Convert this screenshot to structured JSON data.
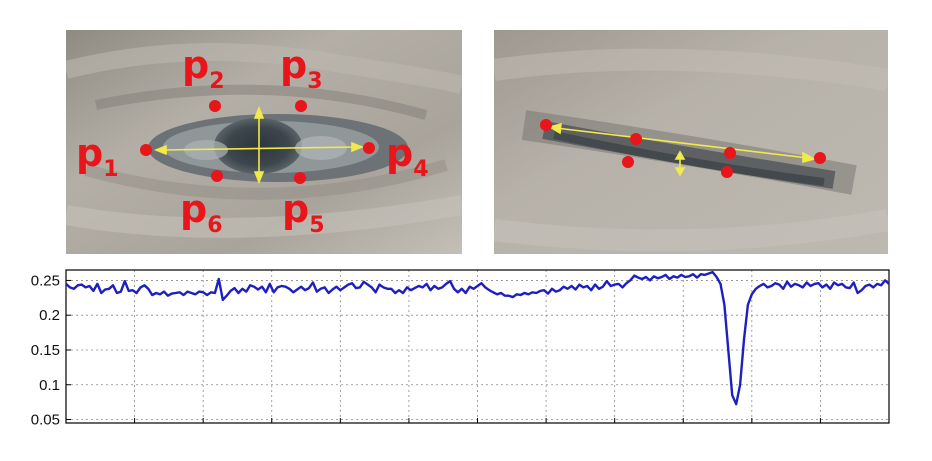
{
  "colors": {
    "landmark": "#e8151b",
    "measure": "#f2e94a",
    "series": "#1d1fc0",
    "grid": "#8a8a8a",
    "skin_light": "#b9b4ab",
    "skin_dark": "#4b5257"
  },
  "landmarks": [
    {
      "id": "p1",
      "base": "p",
      "sub": "1"
    },
    {
      "id": "p2",
      "base": "p",
      "sub": "2"
    },
    {
      "id": "p3",
      "base": "p",
      "sub": "3"
    },
    {
      "id": "p4",
      "base": "p",
      "sub": "4"
    },
    {
      "id": "p5",
      "base": "p",
      "sub": "5"
    },
    {
      "id": "p6",
      "base": "p",
      "sub": "6"
    }
  ],
  "chart_data": {
    "type": "line",
    "title": "",
    "xlabel": "",
    "ylabel": "",
    "ylim": [
      0.045,
      0.265
    ],
    "yticks": [
      "0.05",
      "0.1",
      "0.15",
      "0.2",
      "0.25"
    ],
    "grid": true,
    "series": [
      {
        "values": [
          0.245,
          0.24,
          0.238,
          0.243,
          0.244,
          0.24,
          0.242,
          0.235,
          0.245,
          0.232,
          0.237,
          0.238,
          0.243,
          0.232,
          0.234,
          0.249,
          0.235,
          0.236,
          0.232,
          0.24,
          0.243,
          0.238,
          0.229,
          0.232,
          0.23,
          0.234,
          0.228,
          0.231,
          0.232,
          0.233,
          0.229,
          0.234,
          0.232,
          0.23,
          0.234,
          0.233,
          0.229,
          0.233,
          0.232,
          0.252,
          0.222,
          0.228,
          0.235,
          0.239,
          0.232,
          0.238,
          0.234,
          0.243,
          0.241,
          0.237,
          0.241,
          0.233,
          0.245,
          0.233,
          0.24,
          0.242,
          0.241,
          0.238,
          0.233,
          0.237,
          0.241,
          0.236,
          0.239,
          0.247,
          0.234,
          0.238,
          0.24,
          0.232,
          0.237,
          0.241,
          0.236,
          0.24,
          0.244,
          0.246,
          0.239,
          0.24,
          0.248,
          0.244,
          0.24,
          0.233,
          0.244,
          0.24,
          0.238,
          0.238,
          0.232,
          0.236,
          0.232,
          0.24,
          0.236,
          0.239,
          0.242,
          0.24,
          0.245,
          0.236,
          0.242,
          0.238,
          0.24,
          0.245,
          0.249,
          0.238,
          0.233,
          0.238,
          0.232,
          0.241,
          0.238,
          0.242,
          0.246,
          0.24,
          0.236,
          0.233,
          0.23,
          0.232,
          0.228,
          0.228,
          0.226,
          0.23,
          0.229,
          0.232,
          0.23,
          0.233,
          0.232,
          0.235,
          0.236,
          0.231,
          0.238,
          0.234,
          0.236,
          0.241,
          0.238,
          0.242,
          0.237,
          0.244,
          0.24,
          0.242,
          0.236,
          0.244,
          0.238,
          0.241,
          0.249,
          0.242,
          0.244,
          0.245,
          0.24,
          0.246,
          0.25,
          0.257,
          0.254,
          0.252,
          0.255,
          0.25,
          0.256,
          0.253,
          0.255,
          0.258,
          0.252,
          0.256,
          0.254,
          0.258,
          0.255,
          0.256,
          0.259,
          0.254,
          0.259,
          0.258,
          0.26,
          0.262,
          0.255,
          0.245,
          0.215,
          0.15,
          0.085,
          0.072,
          0.1,
          0.165,
          0.215,
          0.23,
          0.238,
          0.242,
          0.245,
          0.24,
          0.242,
          0.246,
          0.244,
          0.238,
          0.248,
          0.241,
          0.245,
          0.243,
          0.24,
          0.247,
          0.242,
          0.245,
          0.246,
          0.24,
          0.244,
          0.238,
          0.247,
          0.243,
          0.245,
          0.24,
          0.239,
          0.247,
          0.232,
          0.236,
          0.242,
          0.244,
          0.24,
          0.245,
          0.243,
          0.25,
          0.245
        ]
      }
    ]
  }
}
